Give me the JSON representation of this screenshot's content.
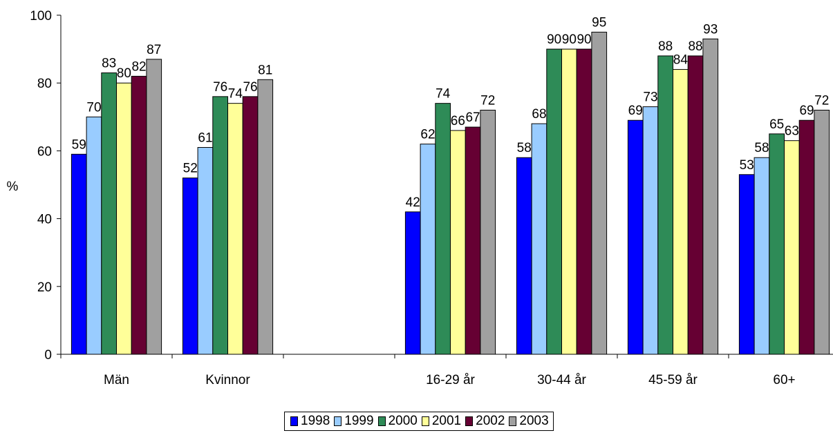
{
  "chart_data": {
    "type": "bar",
    "categories": [
      "Män",
      "Kvinnor",
      "",
      "16-29 år",
      "30-44 år",
      "45-59 år",
      "60+"
    ],
    "series": [
      {
        "name": "1998",
        "values": [
          59,
          52,
          null,
          42,
          58,
          69,
          53
        ]
      },
      {
        "name": "1999",
        "values": [
          70,
          61,
          null,
          62,
          68,
          73,
          58
        ]
      },
      {
        "name": "2000",
        "values": [
          83,
          76,
          null,
          74,
          90,
          88,
          65
        ]
      },
      {
        "name": "2001",
        "values": [
          80,
          74,
          null,
          66,
          90,
          84,
          63
        ]
      },
      {
        "name": "2002",
        "values": [
          82,
          76,
          null,
          67,
          90,
          88,
          69
        ]
      },
      {
        "name": "2003",
        "values": [
          87,
          81,
          null,
          72,
          95,
          93,
          72
        ]
      }
    ],
    "ylabel": "%",
    "ylim": [
      0,
      100
    ],
    "yticks": [
      "0",
      "20",
      "40",
      "60",
      "80",
      "100"
    ],
    "grid": false,
    "legend_position": "bottom",
    "colors": {
      "1998": "#0000ff",
      "1999": "#99ccff",
      "2000": "#2e8b57",
      "2001": "#ffff99",
      "2002": "#660033",
      "2003": "#a0a0a0"
    }
  }
}
